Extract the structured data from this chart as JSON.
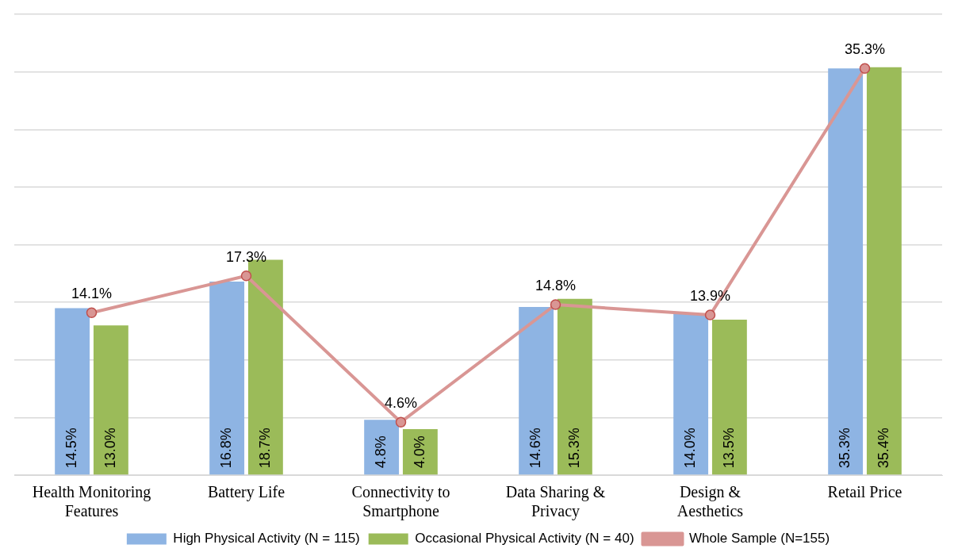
{
  "chart_data": {
    "type": "bar",
    "categories": [
      "Health Monitoring Features",
      "Battery Life",
      "Connectivity to Smartphone",
      "Data Sharing & Privacy",
      "Design & Aesthetics",
      "Retail Price"
    ],
    "series": [
      {
        "name": "High Physical Activity (N = 115)",
        "color": "#8eb4e3",
        "values": [
          14.5,
          16.8,
          4.8,
          14.6,
          14.0,
          35.3
        ],
        "value_labels": [
          "14.5%",
          "16.8%",
          "4.8%",
          "14.6%",
          "14.0%",
          "35.3%"
        ]
      },
      {
        "name": "Occasional Physical Activity (N = 40)",
        "color": "#9bbb59",
        "values": [
          13.0,
          18.7,
          4.0,
          15.3,
          13.5,
          35.4
        ],
        "value_labels": [
          "13.0%",
          "18.7%",
          "4.0%",
          "15.3%",
          "13.5%",
          "35.4%"
        ]
      },
      {
        "name": "Whole Sample (N=155)",
        "type": "line",
        "color": "#d99694",
        "marker": "circle",
        "values": [
          14.1,
          17.3,
          4.6,
          14.8,
          13.9,
          35.3
        ],
        "value_labels": [
          "14.1%",
          "17.3%",
          "4.6%",
          "14.8%",
          "13.9%",
          "35.3%"
        ]
      }
    ],
    "ylim": [
      0,
      40
    ],
    "yticks": [
      {
        "value": 0,
        "label": null
      },
      {
        "value": 5,
        "label": null
      },
      {
        "value": 10,
        "label": null
      },
      {
        "value": 15,
        "label": null
      },
      {
        "value": 20,
        "label": null
      },
      {
        "value": 25,
        "label": null
      },
      {
        "value": 30,
        "label": null
      },
      {
        "value": 35,
        "label": null
      },
      {
        "value": 40,
        "label": null
      }
    ],
    "tick_labels": "x",
    "grid": "y",
    "legend": "bottom"
  }
}
